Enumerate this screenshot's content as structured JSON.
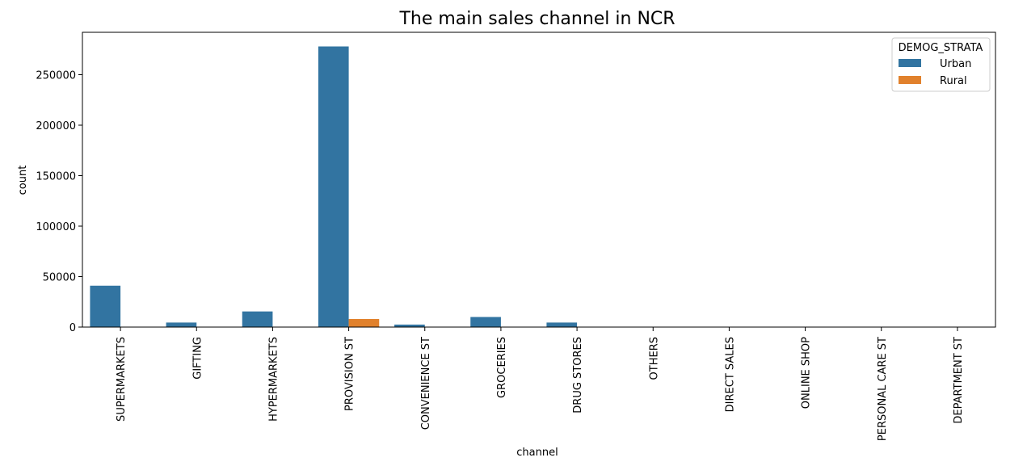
{
  "chart_data": {
    "type": "bar",
    "title": "The main sales channel in NCR",
    "xlabel": "channel",
    "ylabel": "count",
    "categories": [
      "SUPERMARKETS",
      "GIFTING",
      "HYPERMARKETS",
      "PROVISION ST",
      "CONVENIENCE ST",
      "GROCERIES",
      "DRUG STORES",
      "OTHERS",
      "DIRECT SALES",
      "ONLINE SHOP",
      "PERSONAL CARE ST",
      "DEPARTMENT ST"
    ],
    "series": [
      {
        "name": "Urban",
        "color": "#3274a1",
        "values": [
          41000,
          4500,
          15500,
          278000,
          2500,
          10000,
          4500,
          200,
          200,
          100,
          100,
          100
        ]
      },
      {
        "name": "Rural",
        "color": "#e1812c",
        "values": [
          300,
          100,
          100,
          8000,
          50,
          200,
          100,
          0,
          0,
          0,
          0,
          0
        ]
      }
    ],
    "yticks": [
      0,
      50000,
      100000,
      150000,
      200000,
      250000
    ],
    "ytick_labels": [
      "0",
      "50000",
      "100000",
      "150000",
      "200000",
      "250000"
    ],
    "ylim": [
      0,
      292000
    ],
    "legend": {
      "title": "DEMOG_STRATA",
      "position": "top-right"
    },
    "grid": false
  }
}
